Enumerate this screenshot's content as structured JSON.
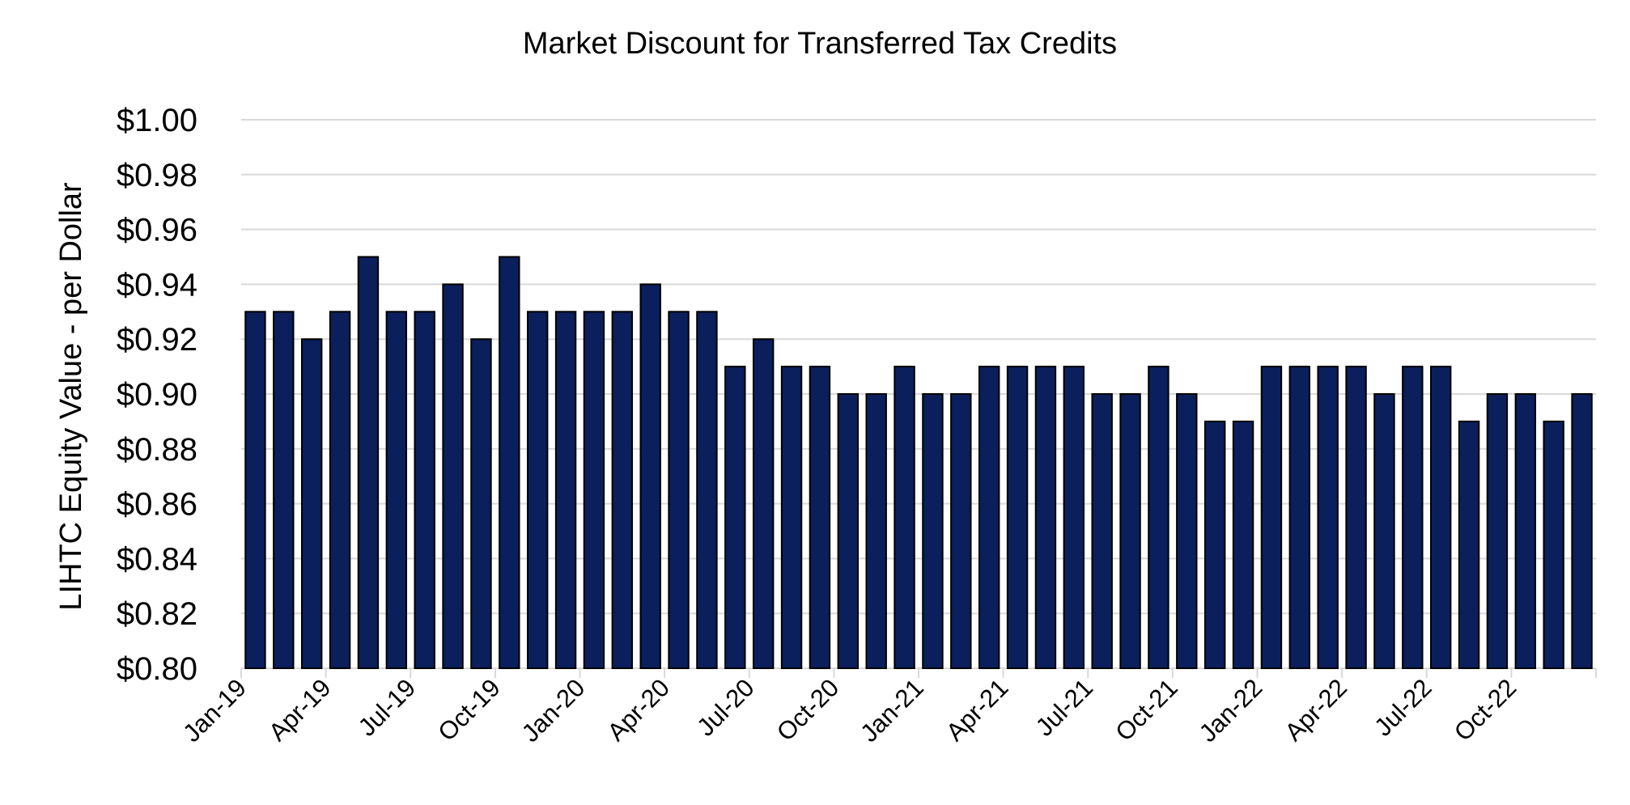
{
  "chart_data": {
    "type": "bar",
    "title": "Market Discount for Transferred Tax Credits",
    "xlabel": "",
    "ylabel": "LIHTC Equity Value - per Dollar",
    "ylim": [
      0.8,
      1.0
    ],
    "ytick_values": [
      0.8,
      0.82,
      0.84,
      0.86,
      0.88,
      0.9,
      0.92,
      0.94,
      0.96,
      0.98,
      1.0
    ],
    "ytick_labels": [
      "$0.80",
      "$0.82",
      "$0.84",
      "$0.86",
      "$0.88",
      "$0.90",
      "$0.92",
      "$0.94",
      "$0.96",
      "$0.98",
      "$1.00"
    ],
    "xtick_labels": [
      "Jan-19",
      "Apr-19",
      "Jul-19",
      "Oct-19",
      "Jan-20",
      "Apr-20",
      "Jul-20",
      "Oct-20",
      "Jan-21",
      "Apr-21",
      "Jul-21",
      "Oct-21",
      "Jan-22",
      "Apr-22",
      "Jul-22",
      "Oct-22"
    ],
    "grid": true,
    "legend": "none",
    "bar_color": "#0a1f5c",
    "categories": [
      "Jan-19",
      "Feb-19",
      "Mar-19",
      "Apr-19",
      "May-19",
      "Jun-19",
      "Jul-19",
      "Aug-19",
      "Sep-19",
      "Oct-19",
      "Nov-19",
      "Dec-19",
      "Jan-20",
      "Feb-20",
      "Mar-20",
      "Apr-20",
      "May-20",
      "Jun-20",
      "Jul-20",
      "Aug-20",
      "Sep-20",
      "Oct-20",
      "Nov-20",
      "Dec-20",
      "Jan-21",
      "Feb-21",
      "Mar-21",
      "Apr-21",
      "May-21",
      "Jun-21",
      "Jul-21",
      "Aug-21",
      "Sep-21",
      "Oct-21",
      "Nov-21",
      "Dec-21",
      "Jan-22",
      "Feb-22",
      "Mar-22",
      "Apr-22",
      "May-22",
      "Jun-22",
      "Jul-22",
      "Aug-22",
      "Sep-22",
      "Oct-22",
      "Nov-22",
      "Dec-22"
    ],
    "values": [
      0.93,
      0.93,
      0.92,
      0.93,
      0.95,
      0.93,
      0.93,
      0.94,
      0.92,
      0.95,
      0.93,
      0.93,
      0.93,
      0.93,
      0.94,
      0.93,
      0.93,
      0.91,
      0.92,
      0.91,
      0.91,
      0.9,
      0.9,
      0.91,
      0.9,
      0.9,
      0.91,
      0.91,
      0.91,
      0.91,
      0.9,
      0.9,
      0.91,
      0.9,
      0.89,
      0.89,
      0.91,
      0.91,
      0.91,
      0.91,
      0.9,
      0.91,
      0.91,
      0.89,
      0.9,
      0.9,
      0.89,
      0.9
    ]
  }
}
